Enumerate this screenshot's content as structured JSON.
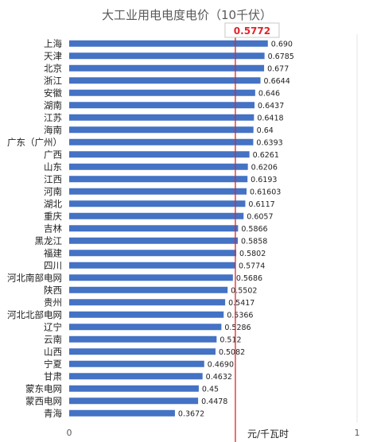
{
  "chart_data": {
    "type": "bar",
    "orientation": "horizontal",
    "title": "大工业用电电度电价（10千伏）",
    "xlabel": "元/千瓦时",
    "xlim": [
      0,
      1
    ],
    "x_ticks": [
      "0",
      "1"
    ],
    "bar_color": "#4472C4",
    "reference_line": {
      "value": 0.5772,
      "label": "0.5772",
      "color": "#E0262B"
    },
    "categories": [
      "上海",
      "天津",
      "北京",
      "浙江",
      "安徽",
      "湖南",
      "江苏",
      "海南",
      "广东（广州）",
      "广西",
      "山东",
      "江西",
      "河南",
      "湖北",
      "重庆",
      "吉林",
      "黑龙江",
      "福建",
      "四川",
      "河北南部电网",
      "陕西",
      "贵州",
      "河北北部电网",
      "辽宁",
      "云南",
      "山西",
      "宁夏",
      "甘肃",
      "蒙东电网",
      "蒙西电网",
      "青海"
    ],
    "values": [
      0.69,
      0.6785,
      0.677,
      0.6644,
      0.646,
      0.6437,
      0.6418,
      0.64,
      0.6393,
      0.6261,
      0.6206,
      0.6193,
      0.61603,
      0.6117,
      0.6057,
      0.5866,
      0.5858,
      0.5802,
      0.5774,
      0.5686,
      0.5502,
      0.5417,
      0.5366,
      0.5286,
      0.512,
      0.5082,
      0.469,
      0.4632,
      0.45,
      0.4478,
      0.3672
    ],
    "value_labels": [
      "0.690",
      "0.6785",
      "0.677",
      "0.6644",
      "0.646",
      "0.6437",
      "0.6418",
      "0.64",
      "0.6393",
      "0.6261",
      "0.6206",
      "0.6193",
      "0.61603",
      "0.6117",
      "0.6057",
      "0.5866",
      "0.5858",
      "0.5802",
      "0.5774",
      "0.5686",
      "0.5502",
      "0.5417",
      "0.5366",
      "0.5286",
      "0.512",
      "0.5082",
      "0.4690",
      "0.4632",
      "0.45",
      "0.4478",
      "0.3672"
    ]
  }
}
